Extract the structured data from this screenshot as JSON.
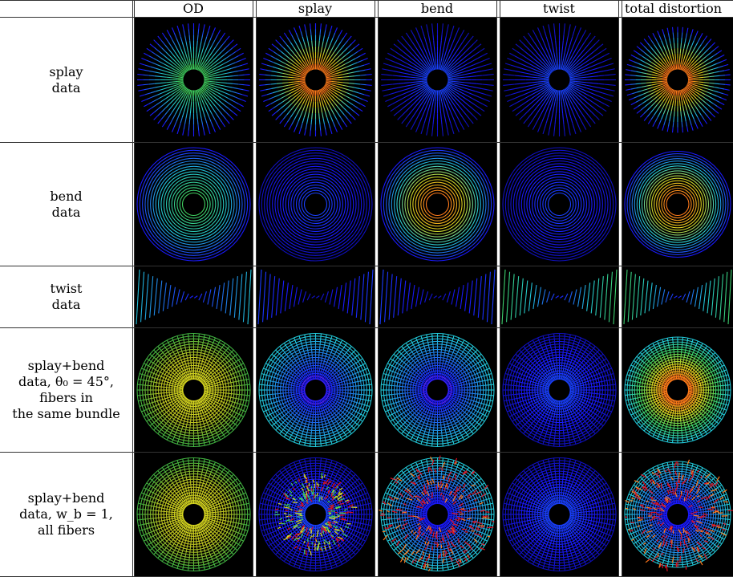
{
  "columns": [
    {
      "key": "od",
      "label": "OD"
    },
    {
      "key": "splay",
      "label": "splay"
    },
    {
      "key": "bend",
      "label": "bend"
    },
    {
      "key": "twist",
      "label": "twist"
    },
    {
      "key": "total",
      "label": "total distortion"
    }
  ],
  "rows": [
    {
      "key": "splay_data",
      "lines": [
        "splay",
        "data"
      ]
    },
    {
      "key": "bend_data",
      "lines": [
        "bend",
        "data"
      ]
    },
    {
      "key": "twist_data",
      "lines": [
        "twist",
        "data"
      ]
    },
    {
      "key": "sb45",
      "lines": [
        "splay+bend",
        "data, θ₀ = 45°,",
        "fibers in",
        "the same bundle"
      ]
    },
    {
      "key": "sbwb",
      "lines": [
        "splay+bend",
        "data, w_b = 1,",
        "all fibers"
      ]
    }
  ],
  "colors": {
    "background": "#000000",
    "low": "#1a1aff",
    "mid": "#22c8d8",
    "mid2": "#40d060",
    "high_yellow": "#d8d820",
    "high_orange": "#ff7a1a",
    "high_red": "#e01020"
  },
  "images": [
    [
      "radial-green",
      "radial-orange",
      "radial-blue",
      "radial-blue",
      "radial-orange"
    ],
    [
      "rings-green",
      "rings-blue",
      "rings-orange",
      "rings-blue",
      "rings-orange"
    ],
    [
      "twist-cyan",
      "twist-blue",
      "twist-blue",
      "twist-green",
      "twist-green"
    ],
    [
      "web-yellow",
      "web-blue-magenta",
      "web-cyan-magenta",
      "web-blue",
      "web-orange"
    ],
    [
      "web-yellow",
      "web-noisy-green",
      "web-noisy-red",
      "web-blue",
      "web-noisy-red"
    ]
  ]
}
